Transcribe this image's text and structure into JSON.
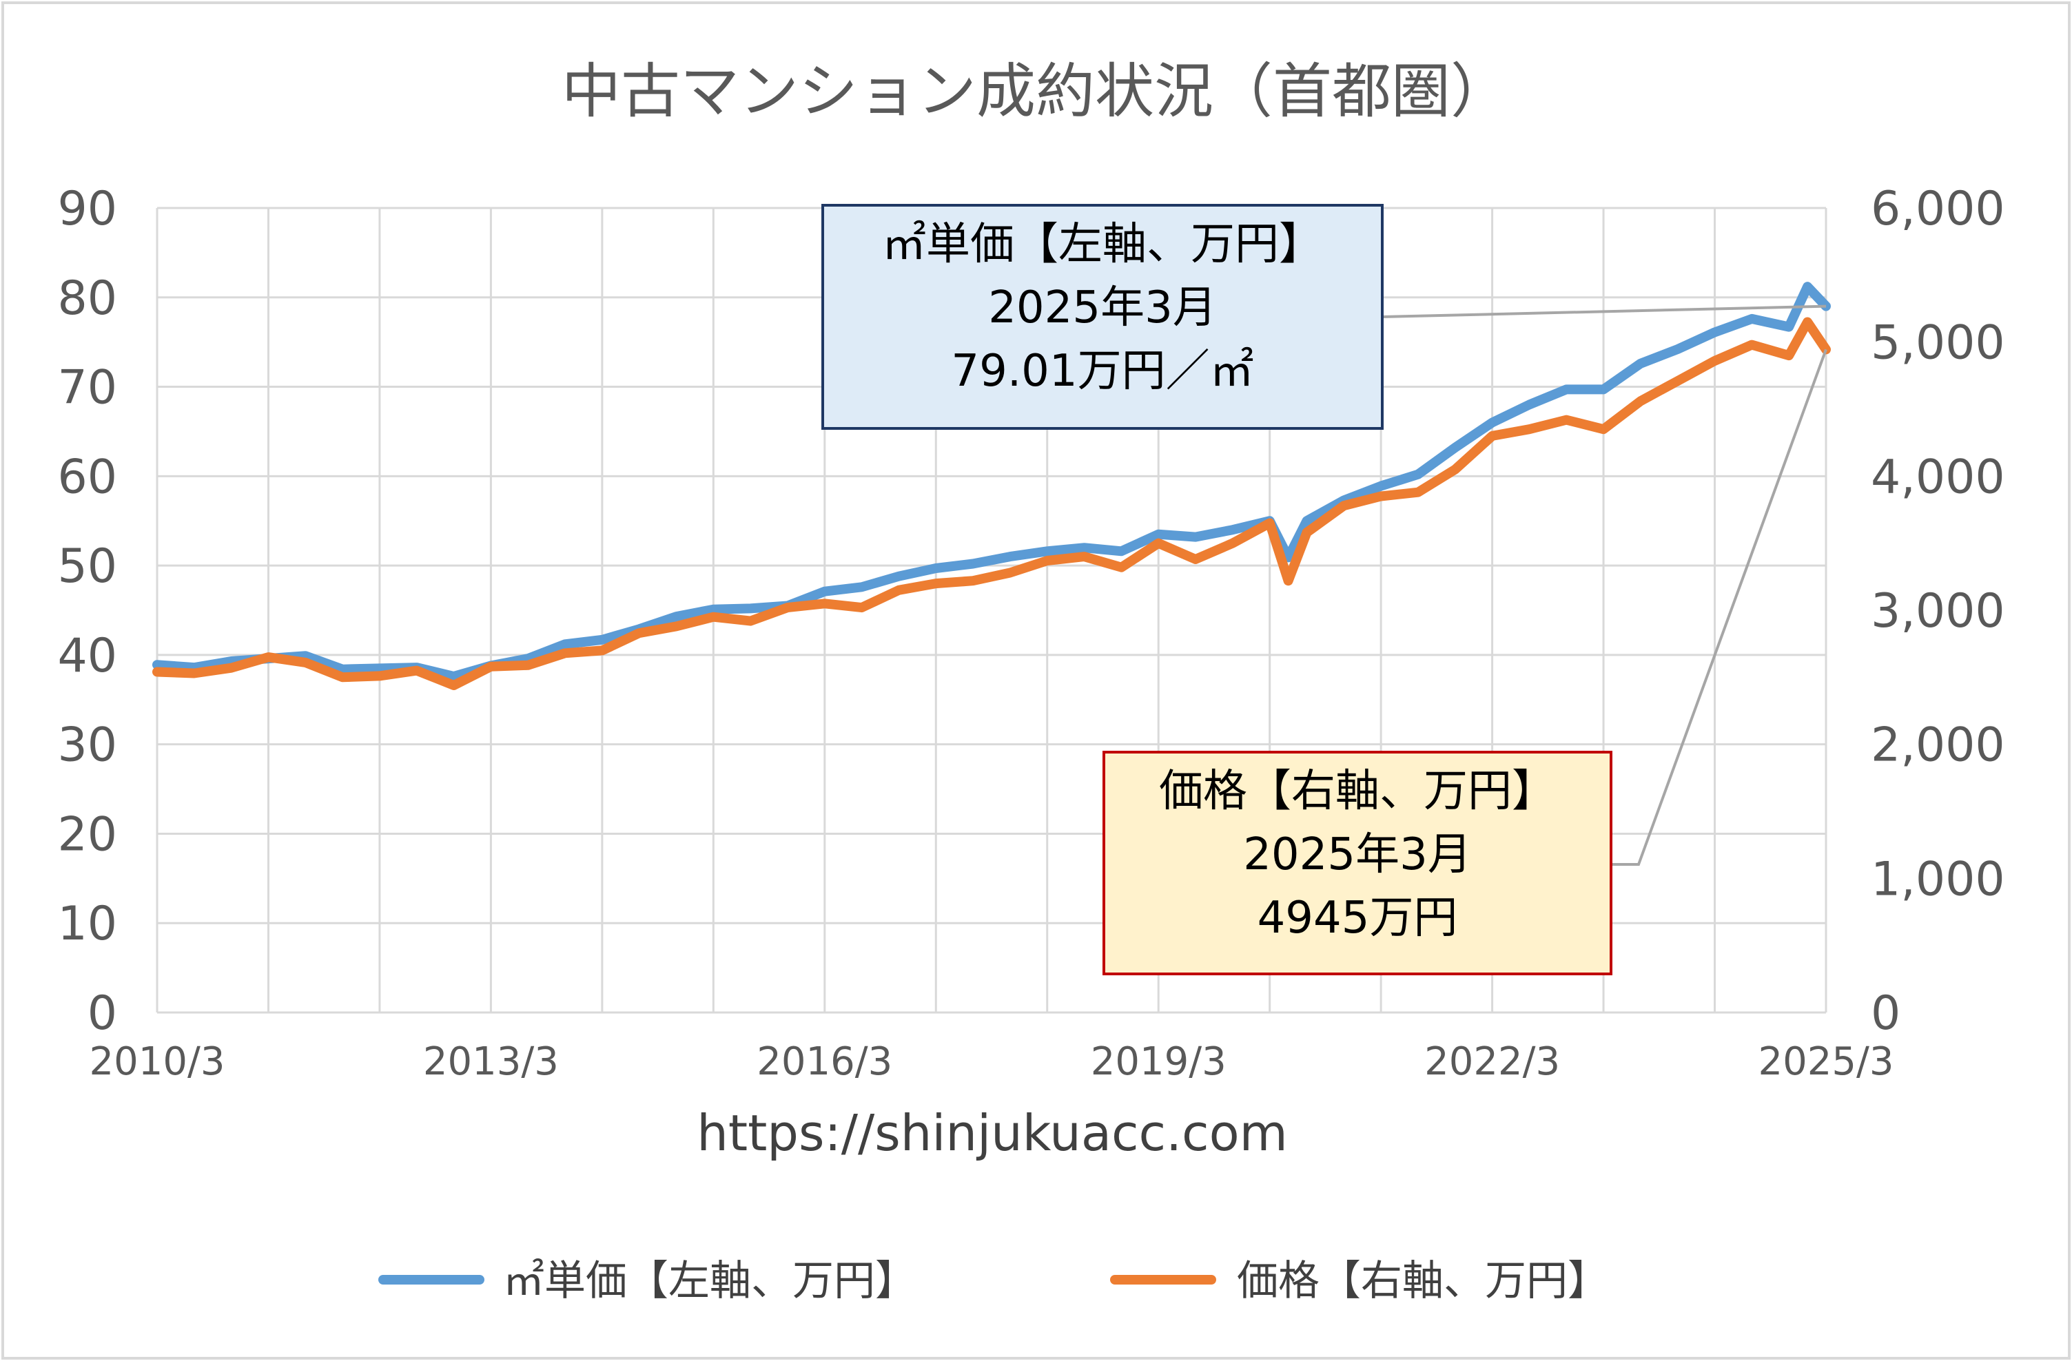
{
  "chart_data": {
    "type": "line",
    "title": "中古マンション成約状況（首都圏）",
    "x_tick_labels": [
      "2010/3",
      "2013/3",
      "2016/3",
      "2019/3",
      "2022/3",
      "2025/3"
    ],
    "x_range": [
      "2010/3",
      "2025/3"
    ],
    "y_left": {
      "range": [
        0,
        90
      ],
      "tick_labels": [
        "0",
        "10",
        "20",
        "30",
        "40",
        "50",
        "60",
        "70",
        "80",
        "90"
      ]
    },
    "y_right": {
      "range": [
        0,
        6000
      ],
      "tick_labels": [
        "0",
        "1,000",
        "2,000",
        "3,000",
        "4,000",
        "5,000",
        "6,000"
      ]
    },
    "grid": true,
    "legend_position": "bottom",
    "source_text": "https://shinjukuacc.com",
    "series": [
      {
        "name": "㎡単価【左軸、万円】",
        "axis": "left",
        "color": "#5b9bd5",
        "points": [
          [
            "2010/3",
            38.9
          ],
          [
            "2010/7",
            38.6
          ],
          [
            "2010/11",
            39.3
          ],
          [
            "2011/3",
            39.6
          ],
          [
            "2011/7",
            39.9
          ],
          [
            "2011/11",
            38.4
          ],
          [
            "2012/3",
            38.5
          ],
          [
            "2012/7",
            38.6
          ],
          [
            "2012/11",
            37.6
          ],
          [
            "2013/3",
            38.8
          ],
          [
            "2013/7",
            39.6
          ],
          [
            "2013/11",
            41.2
          ],
          [
            "2014/3",
            41.7
          ],
          [
            "2014/7",
            42.9
          ],
          [
            "2014/11",
            44.3
          ],
          [
            "2015/3",
            45.1
          ],
          [
            "2015/7",
            45.2
          ],
          [
            "2015/11",
            45.5
          ],
          [
            "2016/3",
            47.1
          ],
          [
            "2016/7",
            47.6
          ],
          [
            "2016/11",
            48.8
          ],
          [
            "2017/3",
            49.7
          ],
          [
            "2017/7",
            50.2
          ],
          [
            "2017/11",
            51.0
          ],
          [
            "2018/3",
            51.6
          ],
          [
            "2018/7",
            52.0
          ],
          [
            "2018/11",
            51.6
          ],
          [
            "2019/3",
            53.5
          ],
          [
            "2019/7",
            53.2
          ],
          [
            "2019/11",
            54.0
          ],
          [
            "2020/3",
            55.0
          ],
          [
            "2020/5",
            50.9
          ],
          [
            "2020/7",
            55.0
          ],
          [
            "2020/11",
            57.3
          ],
          [
            "2021/3",
            58.9
          ],
          [
            "2021/7",
            60.2
          ],
          [
            "2021/11",
            63.2
          ],
          [
            "2022/3",
            66.0
          ],
          [
            "2022/7",
            68.0
          ],
          [
            "2022/11",
            69.7
          ],
          [
            "2023/3",
            69.7
          ],
          [
            "2023/7",
            72.6
          ],
          [
            "2023/11",
            74.2
          ],
          [
            "2024/3",
            76.1
          ],
          [
            "2024/7",
            77.6
          ],
          [
            "2024/11",
            76.7
          ],
          [
            "2025/1",
            81.2
          ],
          [
            "2025/3",
            79.01
          ]
        ]
      },
      {
        "name": "価格【右軸、万円】",
        "axis": "right",
        "color": "#ed7d31",
        "points": [
          [
            "2010/3",
            2540
          ],
          [
            "2010/7",
            2530
          ],
          [
            "2010/11",
            2570
          ],
          [
            "2011/3",
            2650
          ],
          [
            "2011/7",
            2610
          ],
          [
            "2011/11",
            2500
          ],
          [
            "2012/3",
            2510
          ],
          [
            "2012/7",
            2550
          ],
          [
            "2012/11",
            2440
          ],
          [
            "2013/3",
            2580
          ],
          [
            "2013/7",
            2590
          ],
          [
            "2013/11",
            2680
          ],
          [
            "2014/3",
            2700
          ],
          [
            "2014/7",
            2830
          ],
          [
            "2014/11",
            2880
          ],
          [
            "2015/3",
            2950
          ],
          [
            "2015/7",
            2920
          ],
          [
            "2015/11",
            3020
          ],
          [
            "2016/3",
            3050
          ],
          [
            "2016/7",
            3020
          ],
          [
            "2016/11",
            3150
          ],
          [
            "2017/3",
            3200
          ],
          [
            "2017/7",
            3220
          ],
          [
            "2017/11",
            3280
          ],
          [
            "2018/3",
            3370
          ],
          [
            "2018/7",
            3400
          ],
          [
            "2018/11",
            3320
          ],
          [
            "2019/3",
            3500
          ],
          [
            "2019/7",
            3380
          ],
          [
            "2019/11",
            3500
          ],
          [
            "2020/3",
            3650
          ],
          [
            "2020/5",
            3220
          ],
          [
            "2020/7",
            3580
          ],
          [
            "2020/11",
            3780
          ],
          [
            "2021/3",
            3850
          ],
          [
            "2021/7",
            3880
          ],
          [
            "2021/11",
            4050
          ],
          [
            "2022/3",
            4300
          ],
          [
            "2022/7",
            4350
          ],
          [
            "2022/11",
            4420
          ],
          [
            "2023/3",
            4350
          ],
          [
            "2023/7",
            4560
          ],
          [
            "2023/11",
            4710
          ],
          [
            "2024/3",
            4860
          ],
          [
            "2024/7",
            4980
          ],
          [
            "2024/11",
            4900
          ],
          [
            "2025/1",
            5150
          ],
          [
            "2025/3",
            4945
          ]
        ]
      }
    ],
    "annotations": [
      {
        "series": "㎡単価【左軸、万円】",
        "lines": [
          "㎡単価【左軸、万円】",
          "2025年3月",
          "79.01万円／㎡"
        ],
        "fill": "#deebf7",
        "border": "#1f3864"
      },
      {
        "series": "価格【右軸、万円】",
        "lines": [
          "価格【右軸、万円】",
          "2025年3月",
          "4945万円"
        ],
        "fill": "#fff2cc",
        "border": "#c00000"
      }
    ]
  }
}
